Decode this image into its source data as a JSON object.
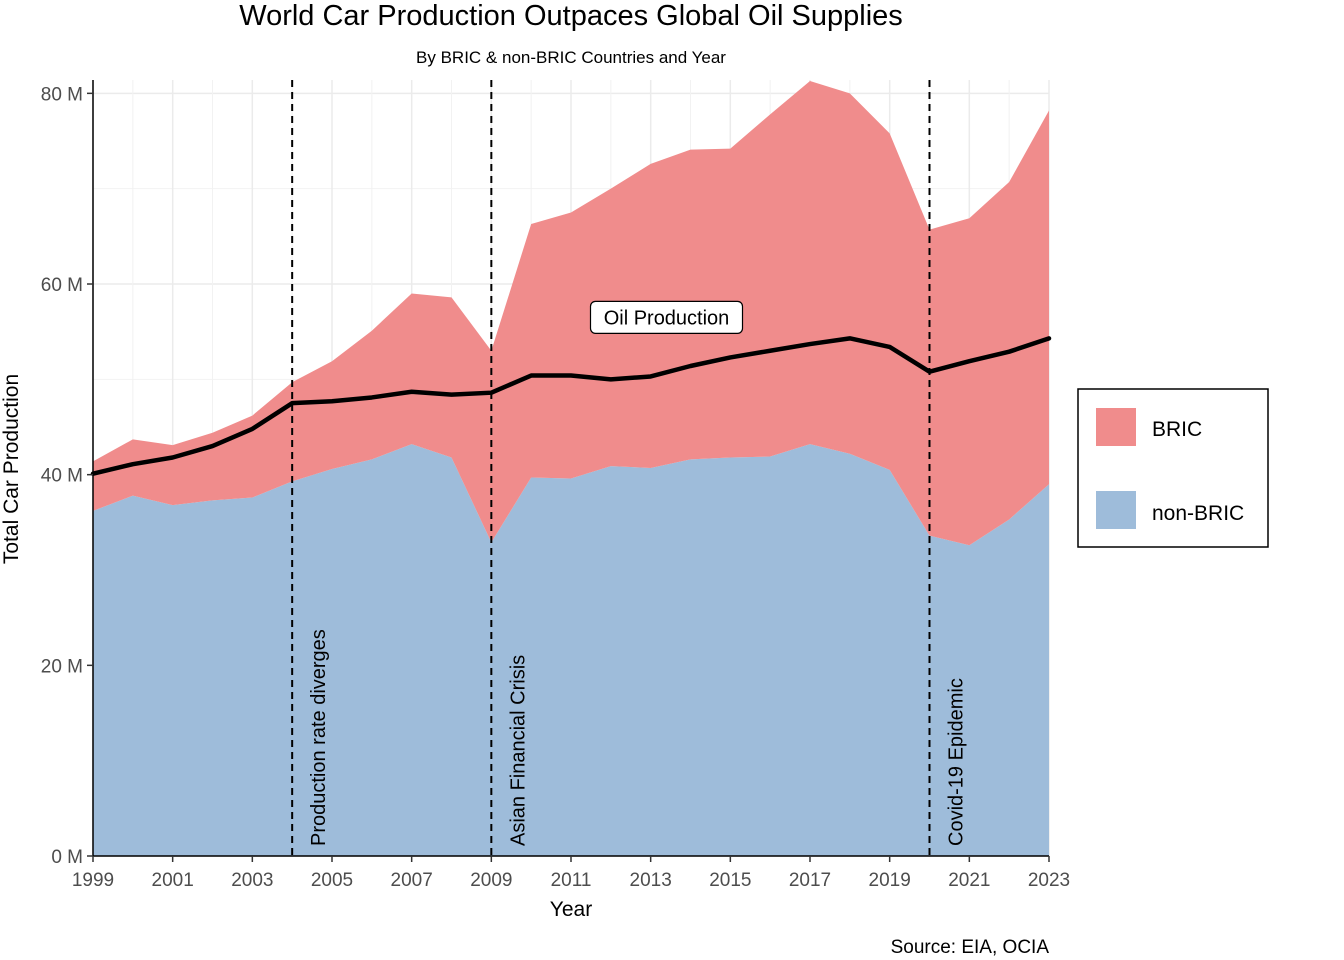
{
  "chart_data": {
    "type": "area",
    "stacked": true,
    "title": "World Car Production Outpaces Global Oil Supplies",
    "subtitle": "By BRIC & non-BRIC Countries and Year",
    "caption": "Source: EIA, OCIA",
    "xlabel": "Year",
    "ylabel": "Total Car Production",
    "xlim": [
      1999,
      2023
    ],
    "ylim": [
      0,
      80
    ],
    "unit": "M",
    "x_ticks": [
      "1999",
      "2001",
      "2003",
      "2005",
      "2007",
      "2009",
      "2011",
      "2013",
      "2015",
      "2017",
      "2019",
      "2021",
      "2023"
    ],
    "y_ticks": [
      "0 M",
      "20 M",
      "40 M",
      "60 M",
      "80 M"
    ],
    "x": [
      1999,
      2000,
      2001,
      2002,
      2003,
      2004,
      2005,
      2006,
      2007,
      2008,
      2009,
      2010,
      2011,
      2012,
      2013,
      2014,
      2015,
      2016,
      2017,
      2018,
      2019,
      2020,
      2021,
      2022,
      2023
    ],
    "series": [
      {
        "name": "non-BRIC",
        "color": "#9ebcda",
        "values": [
          36.2,
          37.8,
          36.8,
          37.3,
          37.6,
          39.3,
          40.6,
          41.6,
          43.2,
          41.8,
          32.9,
          39.7,
          39.6,
          40.9,
          40.7,
          41.6,
          41.8,
          41.9,
          43.2,
          42.2,
          40.5,
          33.6,
          32.6,
          35.3,
          39.0
        ]
      },
      {
        "name": "BRIC",
        "color": "#f08c8c",
        "values": [
          5.2,
          5.9,
          6.3,
          7.1,
          8.6,
          10.4,
          11.3,
          13.5,
          15.8,
          16.8,
          20.1,
          26.6,
          27.9,
          29.1,
          31.9,
          32.5,
          32.4,
          35.9,
          38.1,
          37.8,
          35.3,
          32.1,
          34.3,
          35.4,
          39.2
        ]
      }
    ],
    "line": {
      "name": "Oil Production",
      "color": "#000000",
      "values": [
        40.1,
        41.1,
        41.8,
        43.0,
        44.8,
        47.5,
        47.7,
        48.1,
        48.7,
        48.4,
        48.6,
        50.4,
        50.4,
        50.0,
        50.3,
        51.4,
        52.3,
        53.0,
        53.7,
        54.3,
        53.4,
        50.8,
        51.9,
        52.9,
        54.3
      ]
    },
    "line_label": {
      "text": "Oil Production",
      "x": 2014,
      "y": 56.5
    },
    "events": [
      {
        "x": 2004,
        "label": "Production rate diverges"
      },
      {
        "x": 2009,
        "label": "Asian Financial Crisis"
      },
      {
        "x": 2020,
        "label": "Covid-19 Epidemic"
      }
    ],
    "legend": {
      "position": "right",
      "items": [
        {
          "name": "BRIC",
          "color": "#f08c8c"
        },
        {
          "name": "non-BRIC",
          "color": "#9ebcda"
        }
      ]
    },
    "grid": true
  }
}
